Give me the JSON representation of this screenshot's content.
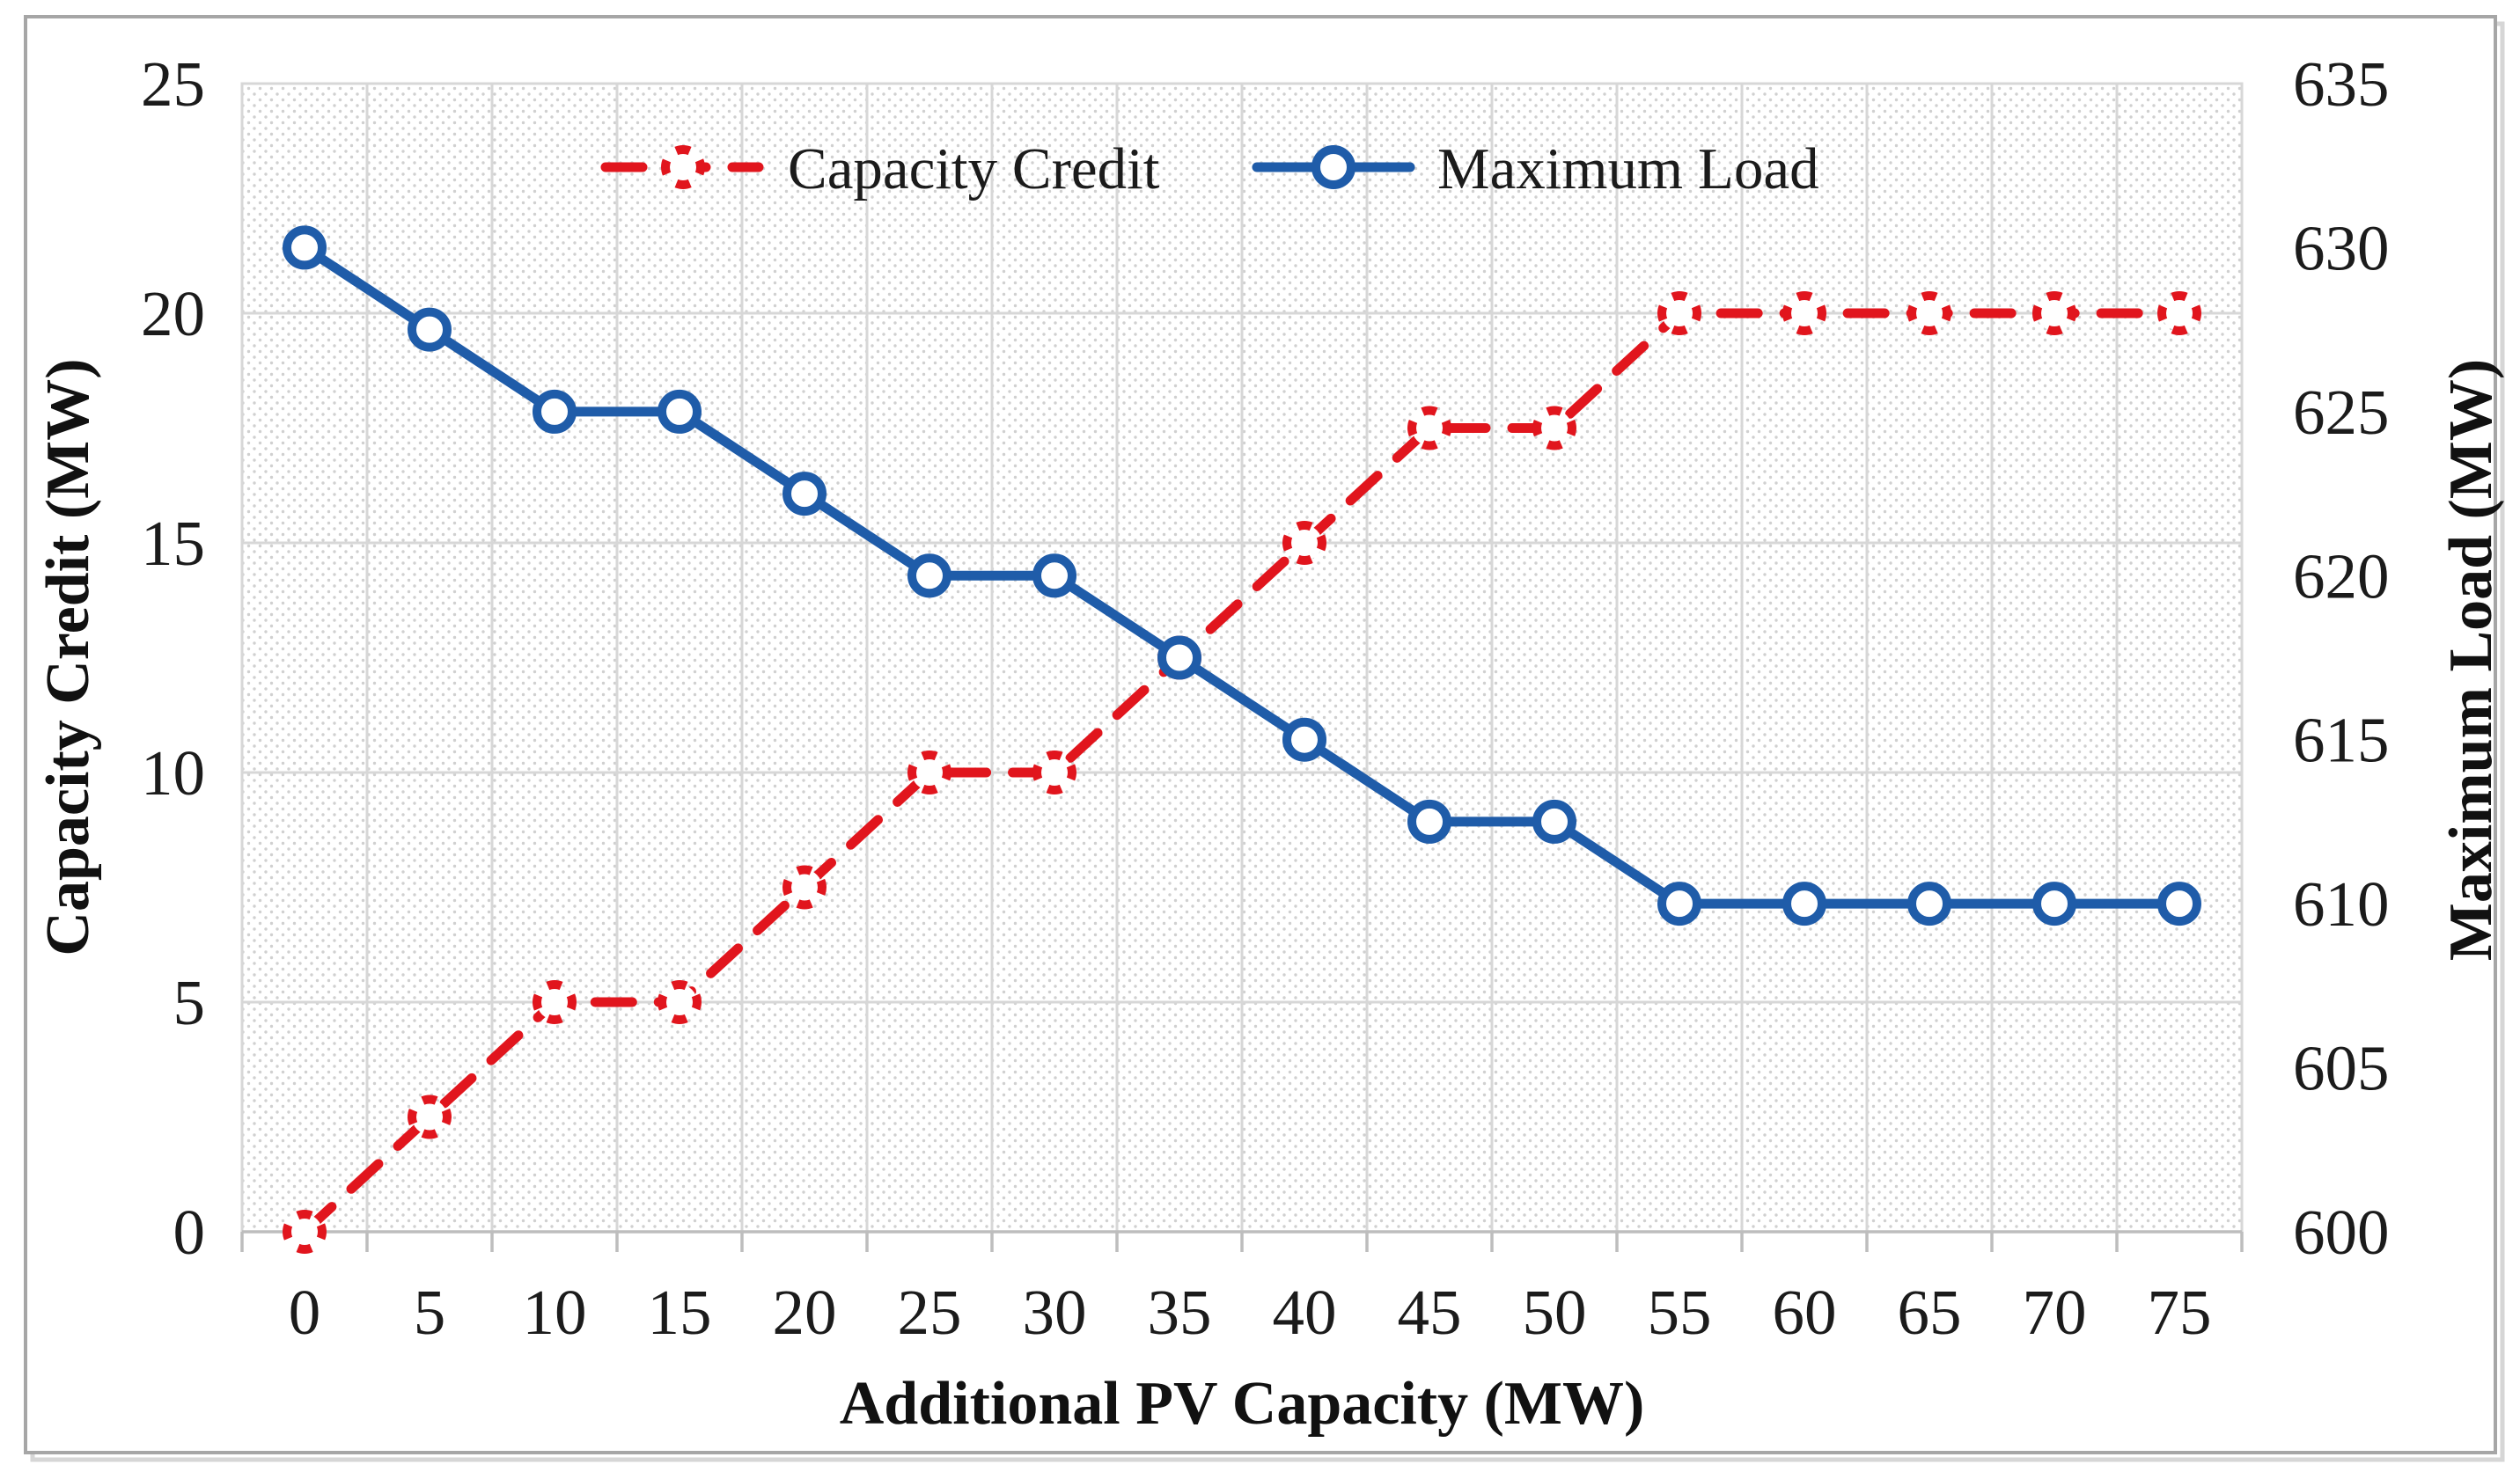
{
  "figure": {
    "frame_color": "#a6a6a6",
    "frame_shadow_color": "#d6d6d6",
    "plot_background": "#ffffff",
    "plot_pattern_dot_color": "#d0d0d0",
    "grid_color": "#d7d7d7",
    "axis_line_color": "#bdbdbd",
    "text_color": "#1b1b1b"
  },
  "chart_data": {
    "type": "line",
    "title": "",
    "xlabel": "Additional PV Capacity (MW)",
    "ylabel_left": "Capacity Credit (MW)",
    "ylabel_right": "Maximum Load (MW)",
    "x": [
      0,
      5,
      10,
      15,
      20,
      25,
      30,
      35,
      40,
      45,
      50,
      55,
      60,
      65,
      70,
      75
    ],
    "left_axis": {
      "min": 0,
      "max": 25,
      "ticks": [
        0,
        5,
        10,
        15,
        20,
        25
      ]
    },
    "right_axis": {
      "min": 600,
      "max": 635,
      "ticks": [
        600,
        605,
        610,
        615,
        620,
        625,
        630,
        635
      ]
    },
    "grid": true,
    "legend_position": "top-center",
    "series": [
      {
        "name": "Capacity Credit",
        "axis": "left",
        "color": "#e1151d",
        "dashed": true,
        "marker": "open-circle-dashed",
        "values": [
          0,
          2.5,
          5,
          5,
          7.5,
          10,
          10,
          12.5,
          15,
          17.5,
          17.5,
          20,
          20,
          20,
          20,
          20
        ]
      },
      {
        "name": "Maximum Load",
        "axis": "right",
        "color": "#1f5ca9",
        "dashed": false,
        "marker": "open-circle",
        "values": [
          630,
          627.5,
          625,
          625,
          622.5,
          620,
          620,
          617.5,
          615,
          612.5,
          612.5,
          610,
          610,
          610,
          610,
          610
        ]
      }
    ]
  }
}
